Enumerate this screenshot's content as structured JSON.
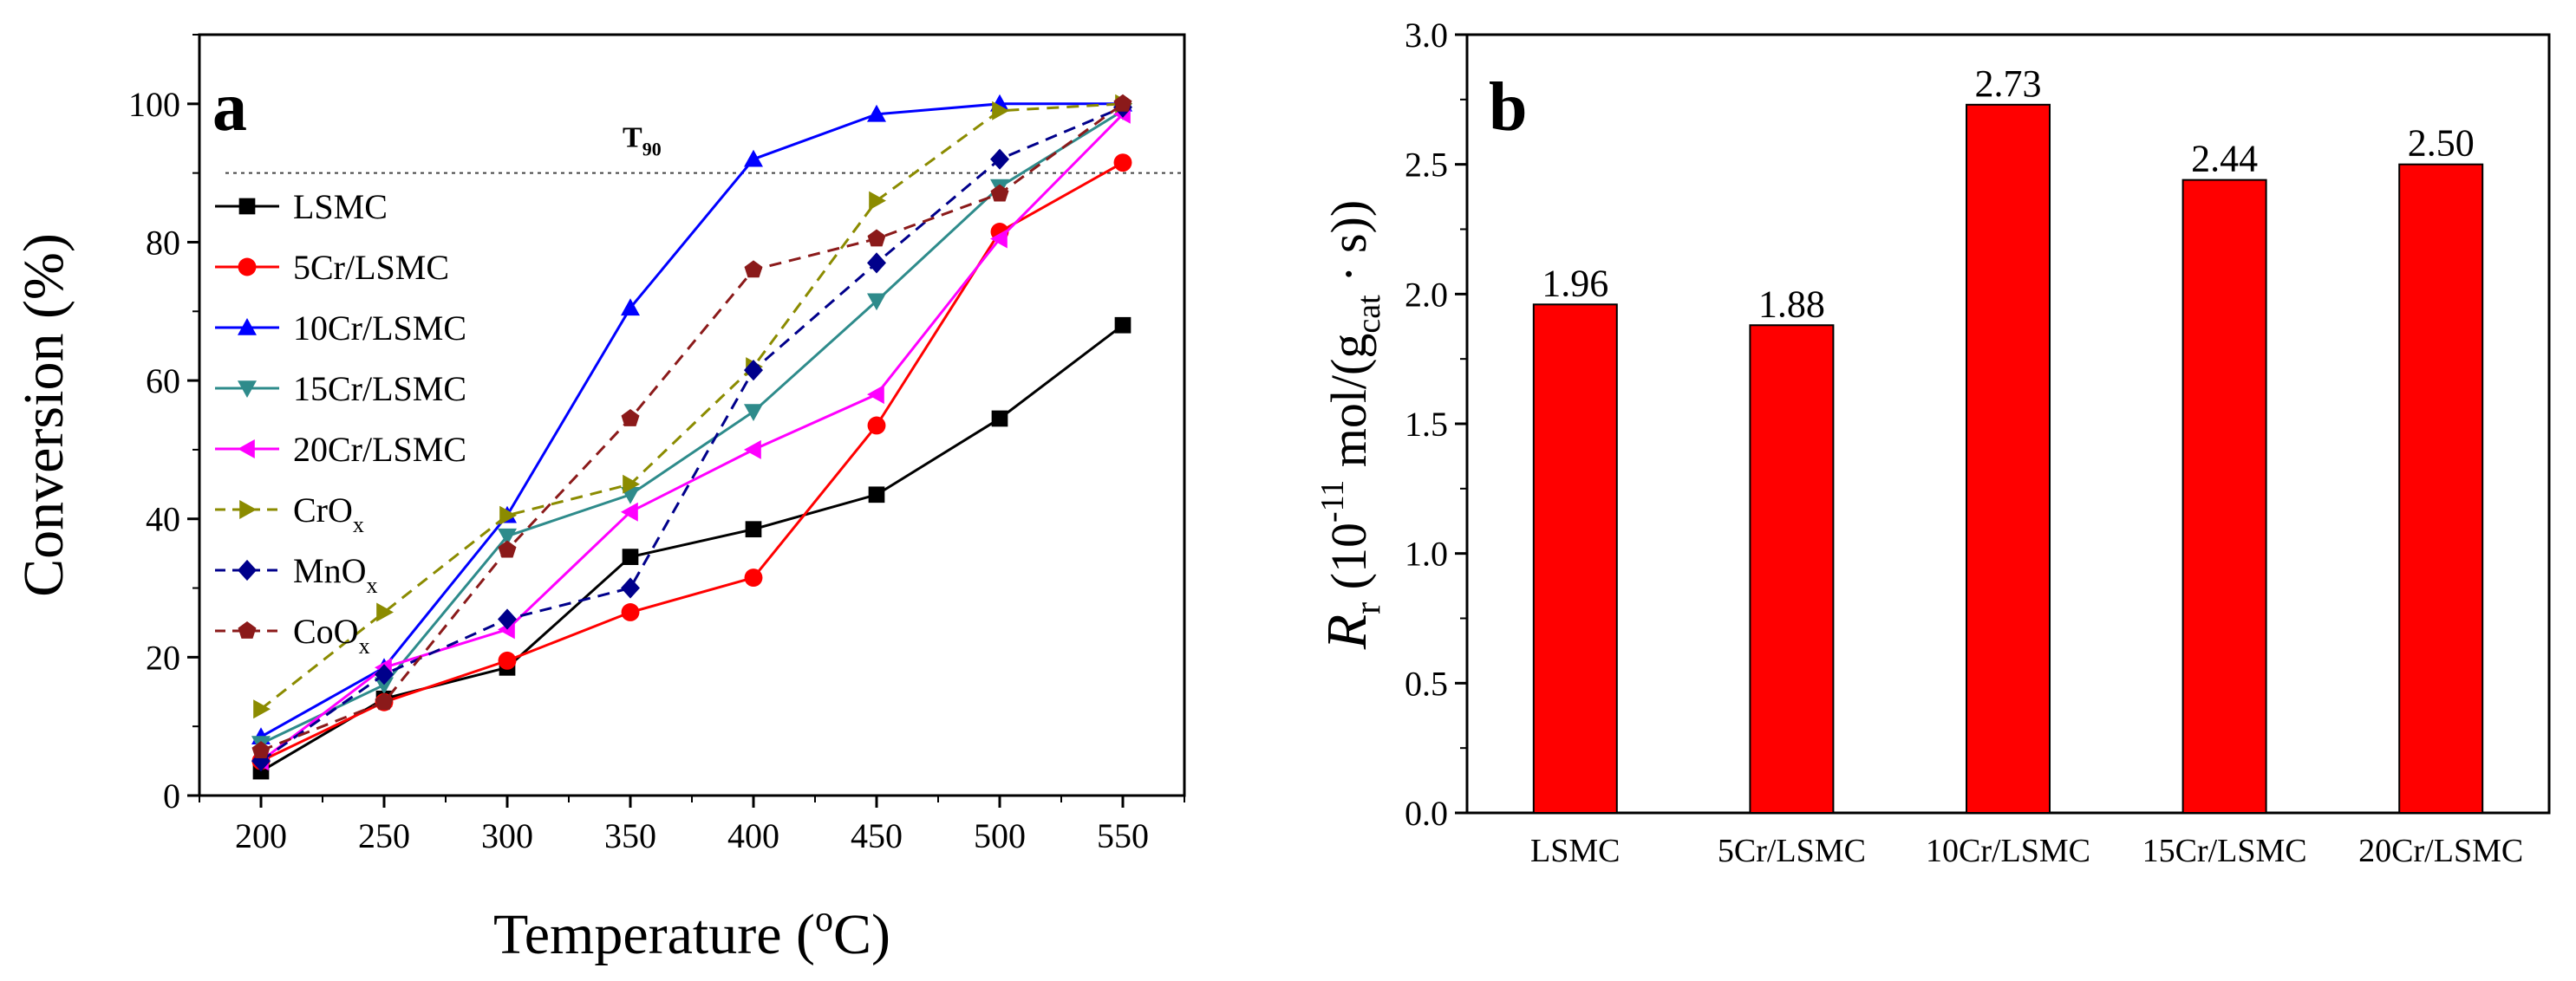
{
  "chart_data": [
    {
      "panel_label": "a",
      "type": "line",
      "xlabel": "Temperature",
      "xlabel_unit_open": " (",
      "xlabel_unit_sup": "o",
      "xlabel_unit_rest": "C)",
      "ylabel": "Conversion (%)",
      "xlim": [
        175,
        575
      ],
      "ylim": [
        0,
        110
      ],
      "x_ticks": [
        200,
        250,
        300,
        350,
        400,
        450,
        500,
        550
      ],
      "y_ticks": [
        0,
        20,
        40,
        60,
        80,
        100
      ],
      "grid": false,
      "legend_position": "left",
      "reference_line": {
        "y": 90,
        "label": "T",
        "label_sub": "90"
      },
      "x": [
        200,
        250,
        300,
        350,
        400,
        450,
        500,
        550
      ],
      "series": [
        {
          "name": "LSMC",
          "name_sub": "",
          "color": "#000000",
          "marker": "square",
          "dash": "solid",
          "values": [
            3.5,
            14,
            18.5,
            34.5,
            38.5,
            43.5,
            54.5,
            68
          ]
        },
        {
          "name": "5Cr/LSMC",
          "name_sub": "",
          "color": "#ff0000",
          "marker": "circle",
          "dash": "solid",
          "values": [
            5,
            13.5,
            19.5,
            26.5,
            31.5,
            53.5,
            81.5,
            91.5
          ]
        },
        {
          "name": "10Cr/LSMC",
          "name_sub": "",
          "color": "#0000ff",
          "marker": "triangle-up",
          "dash": "solid",
          "values": [
            8.5,
            18.5,
            40.5,
            70.5,
            92,
            98.5,
            100,
            100
          ]
        },
        {
          "name": "15Cr/LSMC",
          "name_sub": "",
          "color": "#2e8b8b",
          "marker": "triangle-down",
          "dash": "solid",
          "values": [
            7.5,
            16,
            37.5,
            43.5,
            55.5,
            71.5,
            88,
            99
          ]
        },
        {
          "name": "20Cr/LSMC",
          "name_sub": "",
          "color": "#ff00ff",
          "marker": "triangle-left",
          "dash": "solid",
          "values": [
            5,
            18.5,
            24,
            41,
            50,
            58,
            80.5,
            98.5
          ]
        },
        {
          "name": "CrO",
          "name_sub": "x",
          "color": "#8b8b00",
          "marker": "triangle-right",
          "dash": "dashed",
          "values": [
            12.5,
            26.5,
            40.5,
            45,
            62,
            86,
            99,
            100
          ]
        },
        {
          "name": "MnO",
          "name_sub": "x",
          "color": "#00008b",
          "marker": "diamond",
          "dash": "dashed",
          "values": [
            5,
            17.5,
            25.5,
            30,
            61.5,
            77,
            92,
            99.5
          ]
        },
        {
          "name": "CoO",
          "name_sub": "x",
          "color": "#8b1a1a",
          "marker": "pentagon",
          "dash": "dashed",
          "values": [
            6.5,
            13.5,
            35.5,
            54.5,
            76,
            80.5,
            87,
            100
          ]
        }
      ]
    },
    {
      "panel_label": "b",
      "type": "bar",
      "ylabel_main": "R",
      "ylabel_sub": "r",
      "ylabel_rest_1": " (10",
      "ylabel_sup": "-11",
      "ylabel_rest_2": " mol/(g",
      "ylabel_sub2": "cat",
      "ylabel_rest_3": " · s))",
      "ylim": [
        0,
        3.0
      ],
      "y_ticks": [
        "0.0",
        "0.5",
        "1.0",
        "1.5",
        "2.0",
        "2.5",
        "3.0"
      ],
      "grid": false,
      "bar_color": "#ff0000",
      "categories": [
        "LSMC",
        "5Cr/LSMC",
        "10Cr/LSMC",
        "15Cr/LSMC",
        "20Cr/LSMC"
      ],
      "values": [
        1.96,
        1.88,
        2.73,
        2.44,
        2.5
      ],
      "value_labels": [
        "1.96",
        "1.88",
        "2.73",
        "2.44",
        "2.50"
      ]
    }
  ]
}
